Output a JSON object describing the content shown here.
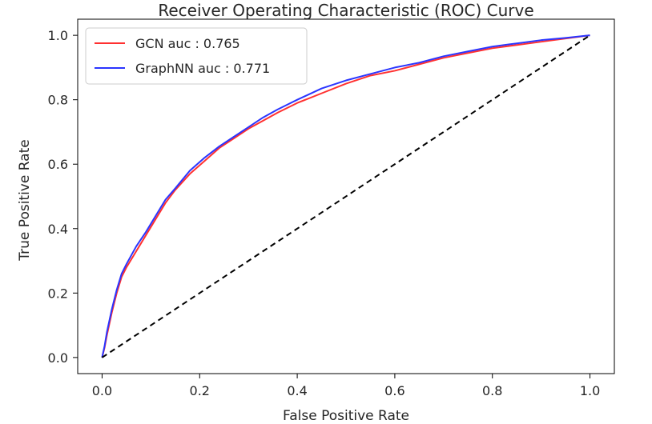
{
  "chart_data": {
    "type": "line",
    "title": "Receiver Operating Characteristic (ROC) Curve",
    "xlabel": "False Positive Rate",
    "ylabel": "True Positive Rate",
    "xlim": [
      -0.05,
      1.05
    ],
    "ylim": [
      -0.05,
      1.05
    ],
    "xticks": [
      0.0,
      0.2,
      0.4,
      0.6,
      0.8,
      1.0
    ],
    "yticks": [
      0.0,
      0.2,
      0.4,
      0.6,
      0.8,
      1.0
    ],
    "xtick_labels": [
      "0.0",
      "0.2",
      "0.4",
      "0.6",
      "0.8",
      "1.0"
    ],
    "ytick_labels": [
      "0.0",
      "0.2",
      "0.4",
      "0.6",
      "0.8",
      "1.0"
    ],
    "grid": false,
    "legend": {
      "position": "top-left"
    },
    "series": [
      {
        "name": "GCN auc : 0.765",
        "color": "#ff3030",
        "x": [
          0.0,
          0.005,
          0.01,
          0.02,
          0.03,
          0.04,
          0.05,
          0.07,
          0.09,
          0.11,
          0.13,
          0.15,
          0.18,
          0.21,
          0.24,
          0.27,
          0.3,
          0.33,
          0.36,
          0.4,
          0.45,
          0.5,
          0.55,
          0.6,
          0.65,
          0.7,
          0.75,
          0.8,
          0.85,
          0.9,
          0.95,
          1.0
        ],
        "y": [
          0.0,
          0.03,
          0.07,
          0.14,
          0.2,
          0.25,
          0.28,
          0.33,
          0.38,
          0.43,
          0.48,
          0.52,
          0.57,
          0.61,
          0.65,
          0.68,
          0.71,
          0.735,
          0.76,
          0.79,
          0.82,
          0.85,
          0.875,
          0.89,
          0.91,
          0.93,
          0.945,
          0.96,
          0.97,
          0.98,
          0.99,
          1.0
        ]
      },
      {
        "name": "GraphNN auc : 0.771",
        "color": "#2a35ff",
        "x": [
          0.0,
          0.005,
          0.01,
          0.02,
          0.03,
          0.04,
          0.05,
          0.07,
          0.09,
          0.11,
          0.13,
          0.15,
          0.18,
          0.21,
          0.24,
          0.27,
          0.3,
          0.33,
          0.36,
          0.4,
          0.45,
          0.5,
          0.55,
          0.6,
          0.65,
          0.7,
          0.75,
          0.8,
          0.85,
          0.9,
          0.95,
          1.0
        ],
        "y": [
          0.0,
          0.035,
          0.08,
          0.15,
          0.21,
          0.26,
          0.29,
          0.345,
          0.39,
          0.44,
          0.49,
          0.525,
          0.58,
          0.62,
          0.655,
          0.685,
          0.715,
          0.745,
          0.77,
          0.8,
          0.835,
          0.86,
          0.88,
          0.9,
          0.915,
          0.935,
          0.95,
          0.965,
          0.975,
          0.985,
          0.992,
          1.0
        ]
      },
      {
        "name": "",
        "color": "#000000",
        "dashed": true,
        "x": [
          0.0,
          1.0
        ],
        "y": [
          0.0,
          1.0
        ]
      }
    ]
  }
}
